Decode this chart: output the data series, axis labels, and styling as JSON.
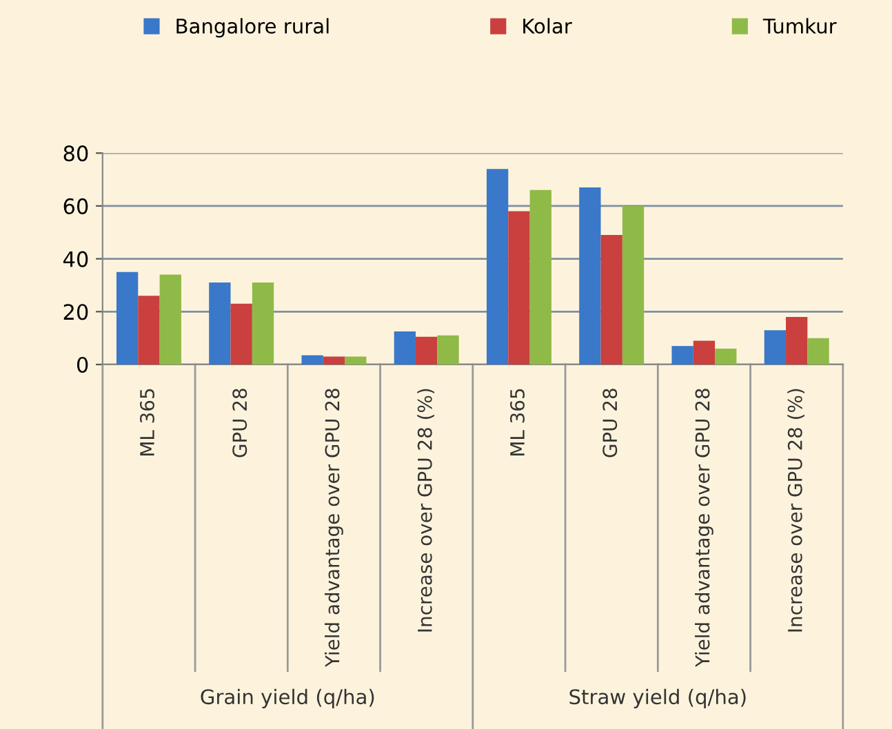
{
  "chart_data": {
    "type": "bar",
    "categories": [
      "ML 365",
      "GPU 28",
      "Yield advantage over GPU 28",
      "Increase over GPU 28 (%)",
      "ML 365",
      "GPU 28",
      "Yield advantage over GPU 28",
      "Increase over GPU 28 (%)"
    ],
    "series": [
      {
        "name": "Bangalore rural",
        "color": "#3a78c9",
        "values": [
          35,
          31,
          3.5,
          12.5,
          74,
          67,
          7,
          13
        ]
      },
      {
        "name": "Kolar",
        "color": "#c9403e",
        "values": [
          26,
          23,
          3,
          10.5,
          58,
          49,
          9,
          18
        ]
      },
      {
        "name": "Tumkur",
        "color": "#8fba48",
        "values": [
          34,
          31,
          3,
          11,
          66,
          60,
          6,
          10
        ]
      }
    ],
    "annotations": [
      "Grain yield (q/ha)",
      "Straw yield (q/ha)"
    ],
    "ylim": [
      0,
      80
    ],
    "yticks": [
      0,
      20,
      40,
      60,
      80
    ],
    "grid": "y",
    "legend": "top"
  }
}
